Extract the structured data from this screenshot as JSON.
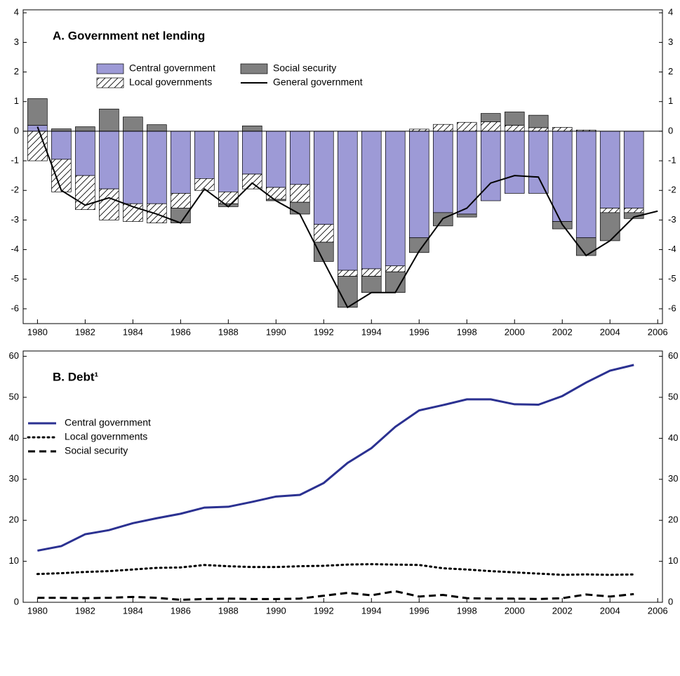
{
  "chart_data": [
    {
      "type": "bar",
      "title": "A. Government net lending",
      "stacked": true,
      "x": [
        1980,
        1981,
        1982,
        1983,
        1984,
        1985,
        1986,
        1987,
        1988,
        1989,
        1990,
        1991,
        1992,
        1993,
        1994,
        1995,
        1996,
        1997,
        1998,
        1999,
        2000,
        2001,
        2002,
        2003,
        2004,
        2005,
        2006
      ],
      "xlim": [
        1979.4,
        2006.2
      ],
      "xticks": [
        1980,
        1982,
        1984,
        1986,
        1988,
        1990,
        1992,
        1994,
        1996,
        1998,
        2000,
        2002,
        2004,
        2006
      ],
      "ylim": [
        -6.5,
        4.1
      ],
      "yticks": [
        -6,
        -5,
        -4,
        -3,
        -2,
        -1,
        0,
        1,
        2,
        3,
        4
      ],
      "legend": "upper left",
      "series": [
        {
          "name": "Central government",
          "color": "#9d9ad6",
          "values": [
            0.2,
            -0.95,
            -1.5,
            -1.95,
            -2.45,
            -2.45,
            -2.1,
            -1.6,
            -2.05,
            -1.45,
            -1.9,
            -1.8,
            -3.15,
            -4.7,
            -4.65,
            -4.55,
            -3.6,
            -2.75,
            -2.8,
            -2.35,
            -2.1,
            -2.1,
            -3.05,
            -3.6,
            -2.6,
            -2.6,
            null
          ]
        },
        {
          "name": "Local governments",
          "color": "#ffffff",
          "hatch": true,
          "values": [
            -1.0,
            -1.1,
            -1.15,
            -1.05,
            -0.6,
            -0.65,
            -0.5,
            -0.4,
            -0.4,
            -0.5,
            -0.4,
            -0.6,
            -0.6,
            -0.2,
            -0.25,
            -0.2,
            0.07,
            0.23,
            0.3,
            0.32,
            0.2,
            0.12,
            0.13,
            0.04,
            -0.15,
            -0.15,
            null
          ]
        },
        {
          "name": "Social security",
          "color": "#808080",
          "values": [
            0.9,
            0.08,
            0.15,
            0.75,
            0.48,
            0.22,
            -0.5,
            0.0,
            -0.1,
            0.18,
            -0.05,
            -0.4,
            -0.65,
            -1.05,
            -0.55,
            -0.7,
            -0.5,
            -0.45,
            -0.1,
            0.28,
            0.45,
            0.42,
            -0.25,
            -0.6,
            -0.95,
            -0.2,
            null
          ]
        },
        {
          "name": "General government",
          "color": "#000000",
          "type": "line",
          "values": [
            0.15,
            -2.0,
            -2.5,
            -2.25,
            -2.55,
            -2.8,
            -3.1,
            -1.95,
            -2.55,
            -1.75,
            -2.35,
            -2.8,
            -4.4,
            -5.95,
            -5.45,
            -5.45,
            -4.05,
            -2.95,
            -2.6,
            -1.75,
            -1.5,
            -1.55,
            -3.15,
            -4.2,
            -3.7,
            -2.9,
            -2.7
          ]
        }
      ]
    },
    {
      "type": "line",
      "title": "B. Debt¹",
      "x": [
        1980,
        1981,
        1982,
        1983,
        1984,
        1985,
        1986,
        1987,
        1988,
        1989,
        1990,
        1991,
        1992,
        1993,
        1994,
        1995,
        1996,
        1997,
        1998,
        1999,
        2000,
        2001,
        2002,
        2003,
        2004,
        2005
      ],
      "xlim": [
        1979.4,
        2006.2
      ],
      "xticks": [
        1980,
        1982,
        1984,
        1986,
        1988,
        1990,
        1992,
        1994,
        1996,
        1998,
        2000,
        2002,
        2004,
        2006
      ],
      "ylim": [
        0,
        61.3
      ],
      "yticks": [
        0,
        10,
        20,
        30,
        40,
        50,
        60
      ],
      "legend": "upper left",
      "series": [
        {
          "name": "Central government",
          "color": "#2b3191",
          "dash": "solid",
          "values": [
            12.6,
            13.7,
            16.6,
            17.6,
            19.3,
            20.5,
            21.6,
            23.1,
            23.3,
            24.5,
            25.8,
            26.2,
            29.1,
            34.0,
            37.6,
            42.8,
            46.8,
            48.1,
            49.5,
            49.5,
            48.3,
            48.2,
            50.3,
            53.6,
            56.5,
            57.9
          ]
        },
        {
          "name": "Local governments",
          "color": "#000000",
          "dash": "dotted",
          "values": [
            6.9,
            7.1,
            7.4,
            7.6,
            8.0,
            8.4,
            8.5,
            9.1,
            8.8,
            8.6,
            8.6,
            8.8,
            8.9,
            9.2,
            9.3,
            9.2,
            9.1,
            8.3,
            8.0,
            7.6,
            7.3,
            7.0,
            6.7,
            6.8,
            6.7,
            6.8
          ]
        },
        {
          "name": "Social security",
          "color": "#000000",
          "dash": "dashed",
          "values": [
            1.1,
            1.1,
            1.0,
            1.1,
            1.3,
            1.1,
            0.6,
            0.8,
            0.9,
            0.8,
            0.8,
            0.9,
            1.6,
            2.3,
            1.7,
            2.7,
            1.4,
            1.8,
            1.0,
            0.9,
            0.9,
            0.8,
            1.0,
            1.9,
            1.4,
            2.0
          ]
        }
      ]
    }
  ]
}
